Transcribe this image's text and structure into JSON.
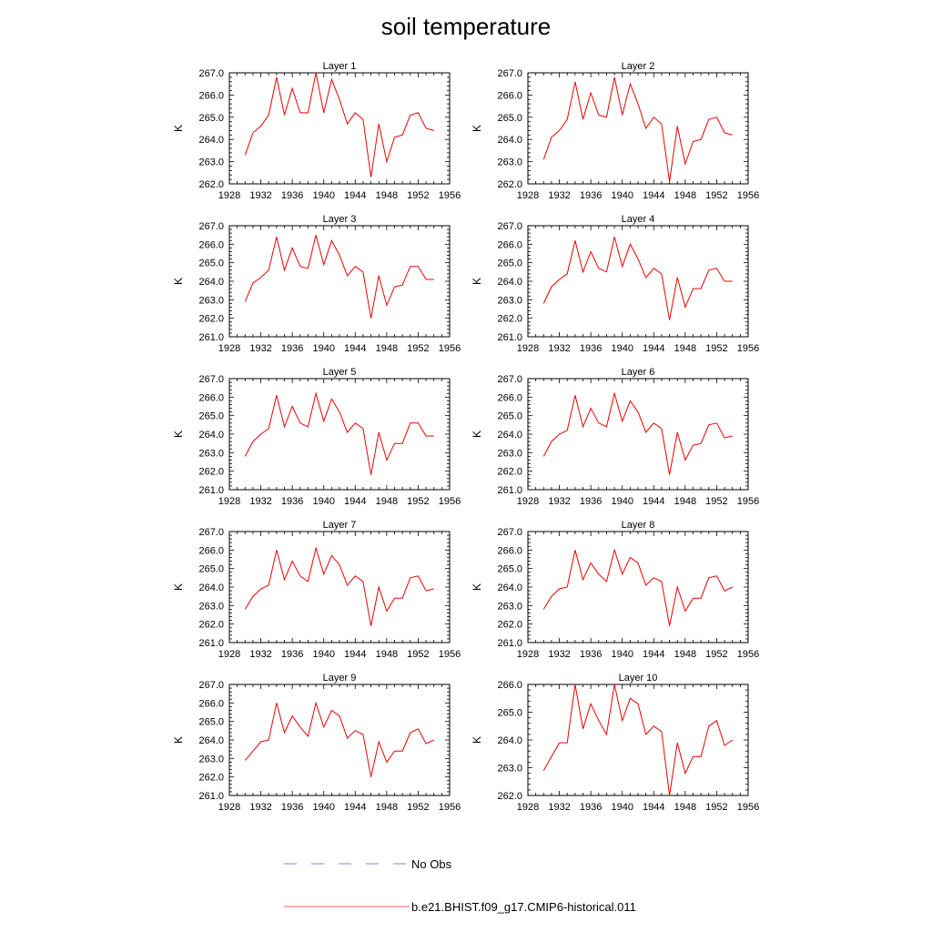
{
  "title": "soil temperature",
  "legend": [
    {
      "label": "No Obs",
      "color": "#5a5ad0",
      "dash": "dashed"
    },
    {
      "label": "b.e21.BHIST.f09_g17.CMIP6-historical.011",
      "color": "#ee2222",
      "dash": "solid"
    }
  ],
  "colors": {
    "model_line": "#ee0000",
    "obs_line": "#5a5ad0"
  },
  "chart_data": [
    {
      "type": "line",
      "title": "Layer 1",
      "ylabel": "K",
      "xlim": [
        1928,
        1956
      ],
      "ylim": [
        262,
        267
      ],
      "xticks": [
        "1928",
        "1932",
        "1936",
        "1940",
        "1944",
        "1948",
        "1952",
        "1956"
      ],
      "yticks": [
        "262.0",
        "263.0",
        "264.0",
        "265.0",
        "266.0",
        "267.0"
      ],
      "x": [
        1930,
        1931,
        1932,
        1933,
        1934,
        1935,
        1936,
        1937,
        1938,
        1939,
        1940,
        1941,
        1942,
        1943,
        1944,
        1945,
        1946,
        1947,
        1948,
        1949,
        1950,
        1951,
        1952,
        1953,
        1954
      ],
      "values": [
        263.3,
        264.3,
        264.6,
        265.1,
        266.8,
        265.1,
        266.3,
        265.2,
        265.2,
        267.0,
        265.2,
        266.7,
        265.8,
        264.7,
        265.2,
        264.9,
        262.3,
        264.7,
        263.0,
        264.1,
        264.2,
        265.1,
        265.2,
        264.5,
        264.4
      ]
    },
    {
      "type": "line",
      "title": "Layer 2",
      "ylabel": "K",
      "xlim": [
        1928,
        1956
      ],
      "ylim": [
        262,
        267
      ],
      "xticks": [
        "1928",
        "1932",
        "1936",
        "1940",
        "1944",
        "1948",
        "1952",
        "1956"
      ],
      "yticks": [
        "262.0",
        "263.0",
        "264.0",
        "265.0",
        "266.0",
        "267.0"
      ],
      "x": [
        1930,
        1931,
        1932,
        1933,
        1934,
        1935,
        1936,
        1937,
        1938,
        1939,
        1940,
        1941,
        1942,
        1943,
        1944,
        1945,
        1946,
        1947,
        1948,
        1949,
        1950,
        1951,
        1952,
        1953,
        1954
      ],
      "values": [
        263.1,
        264.1,
        264.4,
        264.9,
        266.6,
        264.9,
        266.1,
        265.1,
        265.0,
        266.8,
        265.1,
        266.5,
        265.6,
        264.5,
        265.0,
        264.7,
        262.1,
        264.6,
        262.9,
        263.9,
        264.0,
        264.9,
        265.0,
        264.3,
        264.2
      ]
    },
    {
      "type": "line",
      "title": "Layer 3",
      "ylabel": "K",
      "xlim": [
        1928,
        1956
      ],
      "ylim": [
        261,
        267
      ],
      "xticks": [
        "1928",
        "1932",
        "1936",
        "1940",
        "1944",
        "1948",
        "1952",
        "1956"
      ],
      "yticks": [
        "261.0",
        "262.0",
        "263.0",
        "264.0",
        "265.0",
        "266.0",
        "267.0"
      ],
      "x": [
        1930,
        1931,
        1932,
        1933,
        1934,
        1935,
        1936,
        1937,
        1938,
        1939,
        1940,
        1941,
        1942,
        1943,
        1944,
        1945,
        1946,
        1947,
        1948,
        1949,
        1950,
        1951,
        1952,
        1953,
        1954
      ],
      "values": [
        262.9,
        263.9,
        264.2,
        264.6,
        266.4,
        264.6,
        265.8,
        264.8,
        264.7,
        266.5,
        264.9,
        266.2,
        265.4,
        264.3,
        264.8,
        264.5,
        262.0,
        264.3,
        262.7,
        263.7,
        263.8,
        264.8,
        264.8,
        264.1,
        264.1
      ]
    },
    {
      "type": "line",
      "title": "Layer 4",
      "ylabel": "K",
      "xlim": [
        1928,
        1956
      ],
      "ylim": [
        261,
        267
      ],
      "xticks": [
        "1928",
        "1932",
        "1936",
        "1940",
        "1944",
        "1948",
        "1952",
        "1956"
      ],
      "yticks": [
        "261.0",
        "262.0",
        "263.0",
        "264.0",
        "265.0",
        "266.0",
        "267.0"
      ],
      "x": [
        1930,
        1931,
        1932,
        1933,
        1934,
        1935,
        1936,
        1937,
        1938,
        1939,
        1940,
        1941,
        1942,
        1943,
        1944,
        1945,
        1946,
        1947,
        1948,
        1949,
        1950,
        1951,
        1952,
        1953,
        1954
      ],
      "values": [
        262.8,
        263.7,
        264.1,
        264.4,
        266.2,
        264.5,
        265.6,
        264.7,
        264.5,
        266.4,
        264.8,
        266.0,
        265.2,
        264.2,
        264.7,
        264.4,
        261.9,
        264.2,
        262.6,
        263.6,
        263.6,
        264.6,
        264.7,
        264.0,
        264.0
      ]
    },
    {
      "type": "line",
      "title": "Layer 5",
      "ylabel": "K",
      "xlim": [
        1928,
        1956
      ],
      "ylim": [
        261,
        267
      ],
      "xticks": [
        "1928",
        "1932",
        "1936",
        "1940",
        "1944",
        "1948",
        "1952",
        "1956"
      ],
      "yticks": [
        "261.0",
        "262.0",
        "263.0",
        "264.0",
        "265.0",
        "266.0",
        "267.0"
      ],
      "x": [
        1930,
        1931,
        1932,
        1933,
        1934,
        1935,
        1936,
        1937,
        1938,
        1939,
        1940,
        1941,
        1942,
        1943,
        1944,
        1945,
        1946,
        1947,
        1948,
        1949,
        1950,
        1951,
        1952,
        1953,
        1954
      ],
      "values": [
        262.8,
        263.6,
        264.0,
        264.3,
        266.1,
        264.4,
        265.5,
        264.6,
        264.4,
        266.2,
        264.7,
        265.9,
        265.2,
        264.1,
        264.6,
        264.3,
        261.8,
        264.1,
        262.6,
        263.5,
        263.5,
        264.6,
        264.6,
        263.9,
        263.9
      ]
    },
    {
      "type": "line",
      "title": "Layer 6",
      "ylabel": "K",
      "xlim": [
        1928,
        1956
      ],
      "ylim": [
        261,
        267
      ],
      "xticks": [
        "1928",
        "1932",
        "1936",
        "1940",
        "1944",
        "1948",
        "1952",
        "1956"
      ],
      "yticks": [
        "261.0",
        "262.0",
        "263.0",
        "264.0",
        "265.0",
        "266.0",
        "267.0"
      ],
      "x": [
        1930,
        1931,
        1932,
        1933,
        1934,
        1935,
        1936,
        1937,
        1938,
        1939,
        1940,
        1941,
        1942,
        1943,
        1944,
        1945,
        1946,
        1947,
        1948,
        1949,
        1950,
        1951,
        1952,
        1953,
        1954
      ],
      "values": [
        262.8,
        263.6,
        264.0,
        264.2,
        266.1,
        264.4,
        265.4,
        264.6,
        264.4,
        266.2,
        264.7,
        265.8,
        265.2,
        264.1,
        264.6,
        264.3,
        261.8,
        264.1,
        262.6,
        263.4,
        263.5,
        264.5,
        264.6,
        263.8,
        263.9
      ]
    },
    {
      "type": "line",
      "title": "Layer 7",
      "ylabel": "K",
      "xlim": [
        1928,
        1956
      ],
      "ylim": [
        261,
        267
      ],
      "xticks": [
        "1928",
        "1932",
        "1936",
        "1940",
        "1944",
        "1948",
        "1952",
        "1956"
      ],
      "yticks": [
        "261.0",
        "262.0",
        "263.0",
        "264.0",
        "265.0",
        "266.0",
        "267.0"
      ],
      "x": [
        1930,
        1931,
        1932,
        1933,
        1934,
        1935,
        1936,
        1937,
        1938,
        1939,
        1940,
        1941,
        1942,
        1943,
        1944,
        1945,
        1946,
        1947,
        1948,
        1949,
        1950,
        1951,
        1952,
        1953,
        1954
      ],
      "values": [
        262.8,
        263.5,
        263.9,
        264.1,
        266.0,
        264.4,
        265.4,
        264.6,
        264.3,
        266.1,
        264.7,
        265.7,
        265.2,
        264.1,
        264.6,
        264.3,
        261.9,
        264.0,
        262.7,
        263.4,
        263.4,
        264.5,
        264.6,
        263.8,
        263.9
      ]
    },
    {
      "type": "line",
      "title": "Layer 8",
      "ylabel": "K",
      "xlim": [
        1928,
        1956
      ],
      "ylim": [
        261,
        267
      ],
      "xticks": [
        "1928",
        "1932",
        "1936",
        "1940",
        "1944",
        "1948",
        "1952",
        "1956"
      ],
      "yticks": [
        "261.0",
        "262.0",
        "263.0",
        "264.0",
        "265.0",
        "266.0",
        "267.0"
      ],
      "x": [
        1930,
        1931,
        1932,
        1933,
        1934,
        1935,
        1936,
        1937,
        1938,
        1939,
        1940,
        1941,
        1942,
        1943,
        1944,
        1945,
        1946,
        1947,
        1948,
        1949,
        1950,
        1951,
        1952,
        1953,
        1954
      ],
      "values": [
        262.8,
        263.5,
        263.9,
        264.0,
        266.0,
        264.4,
        265.3,
        264.7,
        264.3,
        266.0,
        264.7,
        265.6,
        265.3,
        264.1,
        264.5,
        264.3,
        261.9,
        264.0,
        262.7,
        263.4,
        263.4,
        264.5,
        264.6,
        263.8,
        264.0
      ]
    },
    {
      "type": "line",
      "title": "Layer 9",
      "ylabel": "K",
      "xlim": [
        1928,
        1956
      ],
      "ylim": [
        261,
        267
      ],
      "xticks": [
        "1928",
        "1932",
        "1936",
        "1940",
        "1944",
        "1948",
        "1952",
        "1956"
      ],
      "yticks": [
        "261.0",
        "262.0",
        "263.0",
        "264.0",
        "265.0",
        "266.0",
        "267.0"
      ],
      "x": [
        1930,
        1931,
        1932,
        1933,
        1934,
        1935,
        1936,
        1937,
        1938,
        1939,
        1940,
        1941,
        1942,
        1943,
        1944,
        1945,
        1946,
        1947,
        1948,
        1949,
        1950,
        1951,
        1952,
        1953,
        1954
      ],
      "values": [
        262.9,
        263.4,
        263.9,
        264.0,
        266.0,
        264.4,
        265.3,
        264.7,
        264.2,
        266.0,
        264.7,
        265.6,
        265.3,
        264.1,
        264.5,
        264.3,
        262.0,
        263.9,
        262.8,
        263.4,
        263.4,
        264.4,
        264.6,
        263.8,
        264.0
      ]
    },
    {
      "type": "line",
      "title": "Layer 10",
      "ylabel": "K",
      "xlim": [
        1928,
        1956
      ],
      "ylim": [
        262,
        266
      ],
      "xticks": [
        "1928",
        "1932",
        "1936",
        "1940",
        "1944",
        "1948",
        "1952",
        "1956"
      ],
      "yticks": [
        "262.0",
        "263.0",
        "264.0",
        "265.0",
        "266.0"
      ],
      "x": [
        1930,
        1931,
        1932,
        1933,
        1934,
        1935,
        1936,
        1937,
        1938,
        1939,
        1940,
        1941,
        1942,
        1943,
        1944,
        1945,
        1946,
        1947,
        1948,
        1949,
        1950,
        1951,
        1952,
        1953,
        1954
      ],
      "values": [
        262.9,
        263.4,
        263.9,
        263.9,
        266.0,
        264.4,
        265.3,
        264.7,
        264.2,
        266.0,
        264.7,
        265.5,
        265.3,
        264.2,
        264.5,
        264.3,
        262.0,
        263.9,
        262.8,
        263.4,
        263.4,
        264.5,
        264.7,
        263.8,
        264.0
      ]
    }
  ]
}
